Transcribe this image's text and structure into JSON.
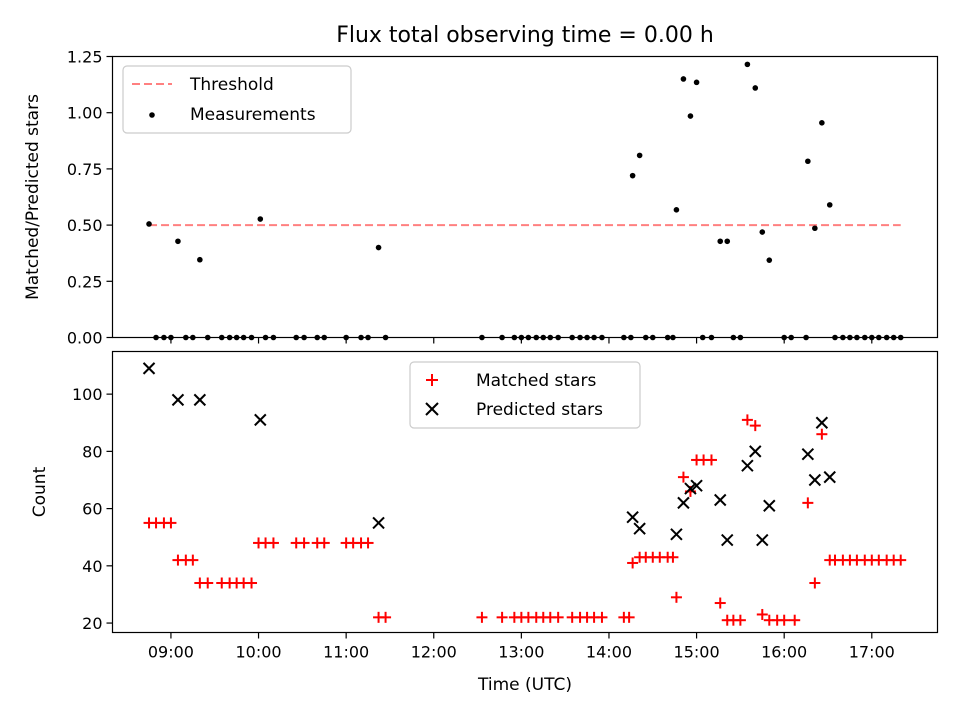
{
  "figure_title": "Flux total observing time = 0.00 h",
  "shared_xlabel": "Time (UTC)",
  "x_tick_labels": [
    "09:00",
    "10:00",
    "11:00",
    "12:00",
    "13:00",
    "14:00",
    "15:00",
    "16:00",
    "17:00"
  ],
  "colors": {
    "threshold": "#ff8080",
    "measurements": "#000000",
    "matched": "#ff0000",
    "predicted": "#000000",
    "axes": "#000000"
  },
  "chart_data": [
    {
      "type": "scatter",
      "title": "Flux total observing time = 0.00 h",
      "xlabel": "",
      "ylabel": "Matched/Predicted stars",
      "xlim": [
        8.333,
        17.75
      ],
      "ylim": [
        0,
        1.25
      ],
      "y_ticks": [
        0.0,
        0.25,
        0.5,
        0.75,
        1.0,
        1.25
      ],
      "y_tick_labels": [
        "0.00",
        "0.25",
        "0.50",
        "0.75",
        "1.00",
        "1.25"
      ],
      "legend": {
        "position": "top-left",
        "entries": [
          "Threshold",
          "Measurements"
        ]
      },
      "threshold": {
        "name": "Threshold",
        "y": 0.5,
        "x_range": [
          8.75,
          17.33
        ]
      },
      "series": [
        {
          "name": "Measurements",
          "points": [
            [
              8.75,
              0.505
            ],
            [
              9.08,
              0.428
            ],
            [
              9.33,
              0.346
            ],
            [
              10.02,
              0.527
            ],
            [
              11.37,
              0.4
            ],
            [
              14.27,
              0.72
            ],
            [
              14.35,
              0.81
            ],
            [
              14.77,
              0.568
            ],
            [
              14.85,
              1.15
            ],
            [
              14.93,
              0.985
            ],
            [
              15.0,
              1.135
            ],
            [
              15.27,
              0.428
            ],
            [
              15.35,
              0.428
            ],
            [
              15.58,
              1.215
            ],
            [
              15.67,
              1.11
            ],
            [
              15.75,
              0.469
            ],
            [
              15.83,
              0.344
            ],
            [
              16.27,
              0.784
            ],
            [
              16.35,
              0.486
            ],
            [
              16.43,
              0.955
            ],
            [
              16.52,
              0.59
            ],
            [
              8.83,
              0
            ],
            [
              8.92,
              0
            ],
            [
              9.0,
              0
            ],
            [
              9.17,
              0
            ],
            [
              9.25,
              0
            ],
            [
              9.42,
              0
            ],
            [
              9.58,
              0
            ],
            [
              9.67,
              0
            ],
            [
              9.75,
              0
            ],
            [
              9.83,
              0
            ],
            [
              9.92,
              0
            ],
            [
              10.08,
              0
            ],
            [
              10.17,
              0
            ],
            [
              10.43,
              0
            ],
            [
              10.52,
              0
            ],
            [
              10.67,
              0
            ],
            [
              10.75,
              0
            ],
            [
              11.0,
              0
            ],
            [
              11.17,
              0
            ],
            [
              11.25,
              0
            ],
            [
              11.45,
              0
            ],
            [
              12.55,
              0
            ],
            [
              12.78,
              0
            ],
            [
              12.92,
              0
            ],
            [
              13.0,
              0
            ],
            [
              13.08,
              0
            ],
            [
              13.17,
              0
            ],
            [
              13.25,
              0
            ],
            [
              13.33,
              0
            ],
            [
              13.42,
              0
            ],
            [
              13.58,
              0
            ],
            [
              13.67,
              0
            ],
            [
              13.75,
              0
            ],
            [
              13.83,
              0
            ],
            [
              13.92,
              0
            ],
            [
              14.17,
              0
            ],
            [
              14.25,
              0
            ],
            [
              14.42,
              0
            ],
            [
              14.5,
              0
            ],
            [
              14.67,
              0
            ],
            [
              14.73,
              0
            ],
            [
              15.07,
              0
            ],
            [
              15.17,
              0
            ],
            [
              15.42,
              0
            ],
            [
              15.5,
              0
            ],
            [
              16.0,
              0
            ],
            [
              16.08,
              0
            ],
            [
              16.25,
              0
            ],
            [
              16.58,
              0
            ],
            [
              16.67,
              0
            ],
            [
              16.75,
              0
            ],
            [
              16.83,
              0
            ],
            [
              16.92,
              0
            ],
            [
              17.0,
              0
            ],
            [
              17.08,
              0
            ],
            [
              17.17,
              0
            ],
            [
              17.25,
              0
            ],
            [
              17.33,
              0
            ]
          ]
        }
      ]
    },
    {
      "type": "scatter",
      "title": "",
      "xlabel": "Time (UTC)",
      "ylabel": "Count",
      "xlim": [
        8.333,
        17.75
      ],
      "ylim": [
        16.7,
        114.9
      ],
      "y_ticks": [
        20,
        40,
        60,
        80,
        100
      ],
      "y_tick_labels": [
        "20",
        "40",
        "60",
        "80",
        "100"
      ],
      "legend": {
        "position": "top-center",
        "entries": [
          "Matched stars",
          "Predicted stars"
        ]
      },
      "series": [
        {
          "name": "Matched stars",
          "marker": "plus",
          "points": [
            [
              8.75,
              55
            ],
            [
              8.83,
              55
            ],
            [
              8.92,
              55
            ],
            [
              9.0,
              55
            ],
            [
              9.08,
              42
            ],
            [
              9.17,
              42
            ],
            [
              9.25,
              42
            ],
            [
              9.33,
              34
            ],
            [
              9.42,
              34
            ],
            [
              9.58,
              34
            ],
            [
              9.67,
              34
            ],
            [
              9.75,
              34
            ],
            [
              9.83,
              34
            ],
            [
              9.92,
              34
            ],
            [
              10.0,
              48
            ],
            [
              10.08,
              48
            ],
            [
              10.17,
              48
            ],
            [
              10.43,
              48
            ],
            [
              10.52,
              48
            ],
            [
              10.67,
              48
            ],
            [
              10.75,
              48
            ],
            [
              11.0,
              48
            ],
            [
              11.08,
              48
            ],
            [
              11.17,
              48
            ],
            [
              11.25,
              48
            ],
            [
              11.37,
              22
            ],
            [
              11.45,
              22
            ],
            [
              12.55,
              22
            ],
            [
              12.78,
              22
            ],
            [
              12.92,
              22
            ],
            [
              13.0,
              22
            ],
            [
              13.08,
              22
            ],
            [
              13.17,
              22
            ],
            [
              13.25,
              22
            ],
            [
              13.33,
              22
            ],
            [
              13.42,
              22
            ],
            [
              13.58,
              22
            ],
            [
              13.67,
              22
            ],
            [
              13.75,
              22
            ],
            [
              13.83,
              22
            ],
            [
              13.92,
              22
            ],
            [
              14.17,
              22
            ],
            [
              14.23,
              22
            ],
            [
              14.27,
              41
            ],
            [
              14.35,
              43
            ],
            [
              14.42,
              43
            ],
            [
              14.5,
              43
            ],
            [
              14.58,
              43
            ],
            [
              14.67,
              43
            ],
            [
              14.73,
              43
            ],
            [
              14.77,
              29
            ],
            [
              14.85,
              71
            ],
            [
              14.93,
              66
            ],
            [
              15.0,
              77
            ],
            [
              15.08,
              77
            ],
            [
              15.17,
              77
            ],
            [
              15.27,
              27
            ],
            [
              15.35,
              21
            ],
            [
              15.42,
              21
            ],
            [
              15.5,
              21
            ],
            [
              15.58,
              91
            ],
            [
              15.67,
              89
            ],
            [
              15.75,
              23
            ],
            [
              15.83,
              21
            ],
            [
              15.92,
              21
            ],
            [
              16.0,
              21
            ],
            [
              16.12,
              21
            ],
            [
              16.27,
              62
            ],
            [
              16.35,
              34
            ],
            [
              16.43,
              86
            ],
            [
              16.52,
              42
            ],
            [
              16.58,
              42
            ],
            [
              16.67,
              42
            ],
            [
              16.75,
              42
            ],
            [
              16.83,
              42
            ],
            [
              16.92,
              42
            ],
            [
              17.0,
              42
            ],
            [
              17.08,
              42
            ],
            [
              17.17,
              42
            ],
            [
              17.25,
              42
            ],
            [
              17.33,
              42
            ]
          ]
        },
        {
          "name": "Predicted stars",
          "marker": "x",
          "points": [
            [
              8.75,
              109
            ],
            [
              9.08,
              98
            ],
            [
              9.33,
              98
            ],
            [
              10.02,
              91
            ],
            [
              11.37,
              55
            ],
            [
              14.27,
              57
            ],
            [
              14.35,
              53
            ],
            [
              14.77,
              51
            ],
            [
              14.85,
              62
            ],
            [
              14.93,
              67
            ],
            [
              15.0,
              68
            ],
            [
              15.27,
              63
            ],
            [
              15.35,
              49
            ],
            [
              15.58,
              75
            ],
            [
              15.67,
              80
            ],
            [
              15.75,
              49
            ],
            [
              15.83,
              61
            ],
            [
              16.27,
              79
            ],
            [
              16.35,
              70
            ],
            [
              16.43,
              90
            ],
            [
              16.52,
              71
            ]
          ]
        }
      ]
    }
  ]
}
